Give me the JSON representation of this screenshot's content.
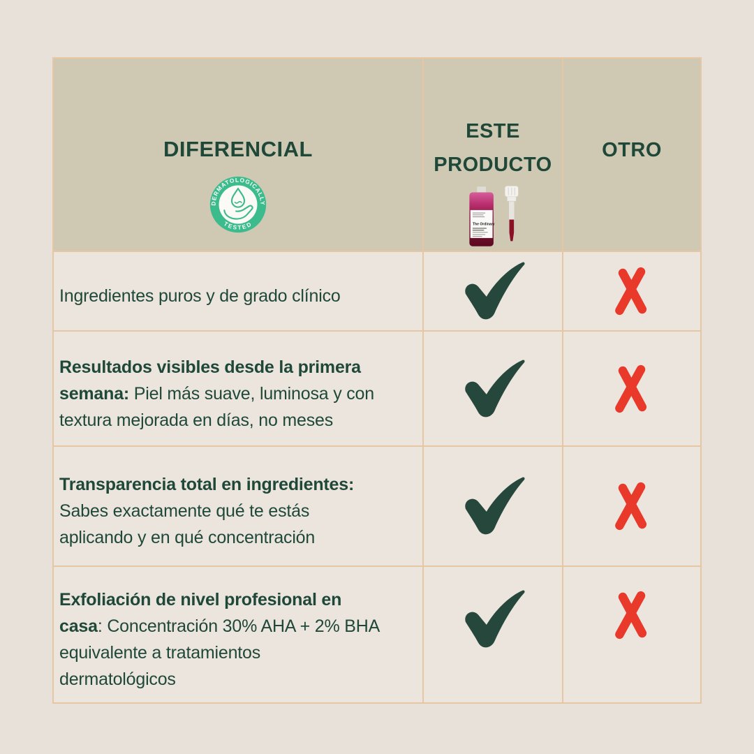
{
  "table": {
    "header": {
      "diferencial": {
        "title": "DIFERENCIAL",
        "badge": {
          "arc_top": "DERMATOLOGICALLY",
          "arc_bottom": "TESTED"
        }
      },
      "este_producto": {
        "title": "ESTE\nPRODUCTO",
        "product_label": "The Ordinary"
      },
      "otro": {
        "title": "OTRO"
      }
    },
    "rows": [
      {
        "segments": [
          {
            "bold": false,
            "text": "Ingredientes puros y de grado clínico"
          }
        ],
        "este": "check",
        "otro": "cross"
      },
      {
        "segments": [
          {
            "bold": true,
            "text": "Resultados visibles desde la primera\nsemana:"
          },
          {
            "bold": false,
            "text": " Piel más suave, luminosa y con\ntextura mejorada en días, no meses"
          }
        ],
        "este": "check",
        "otro": "cross"
      },
      {
        "segments": [
          {
            "bold": true,
            "text": "Transparencia total en ingredientes:"
          },
          {
            "bold": false,
            "text": "\nSabes exactamente qué te estás\naplicando y en qué concentración"
          }
        ],
        "este": "check",
        "otro": "cross"
      },
      {
        "segments": [
          {
            "bold": true,
            "text": "Exfoliación de nivel profesional en\ncasa"
          },
          {
            "bold": false,
            "text": ": Concentración 30% AHA + 2% BHA\nequivalente a tratamientos\ndermatológicos"
          }
        ],
        "este": "check",
        "otro": "cross"
      }
    ]
  },
  "colors": {
    "page_bg": "#E8E1D9",
    "header_bg": "#CFC9B3",
    "cell_bg": "#ECE5DE",
    "border": "#E7C7A3",
    "accent_green": "#1F4839",
    "check_green": "#26473B",
    "cross_red": "#E8392B",
    "badge_green": "#3CBB8D"
  }
}
